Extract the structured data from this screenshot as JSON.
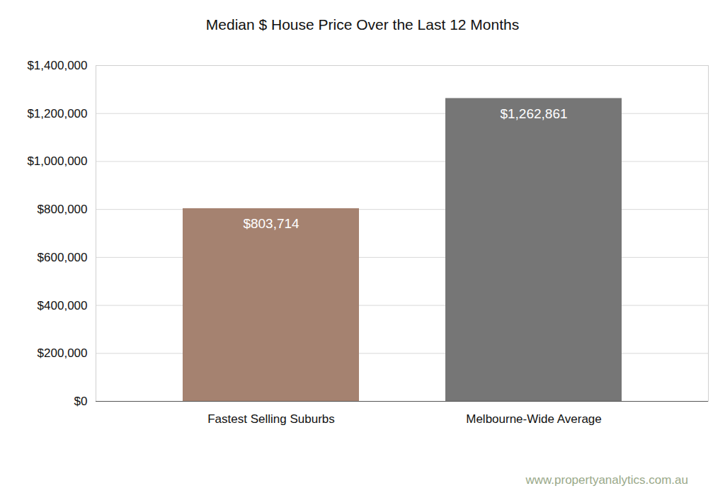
{
  "chart_data": {
    "type": "bar",
    "title": "Median $ House Price Over the Last 12 Months",
    "categories": [
      "Fastest Selling Suburbs",
      "Melbourne-Wide Average"
    ],
    "values": [
      803714,
      1262861
    ],
    "value_labels": [
      "$803,714",
      "$1,262,861"
    ],
    "colors": [
      "#a58270",
      "#767676"
    ],
    "ylim": [
      0,
      1400000
    ],
    "yticks": [
      {
        "value": 0,
        "label": "$0"
      },
      {
        "value": 200000,
        "label": "$200,000"
      },
      {
        "value": 400000,
        "label": "$400,000"
      },
      {
        "value": 600000,
        "label": "$600,000"
      },
      {
        "value": 800000,
        "label": "$800,000"
      },
      {
        "value": 1000000,
        "label": "$1,000,000"
      },
      {
        "value": 1200000,
        "label": "$1,200,000"
      },
      {
        "value": 1400000,
        "label": "$1,400,000"
      }
    ],
    "grid": true,
    "data_labels": true,
    "annotations": [
      "www.propertyanalytics.com.au"
    ]
  }
}
